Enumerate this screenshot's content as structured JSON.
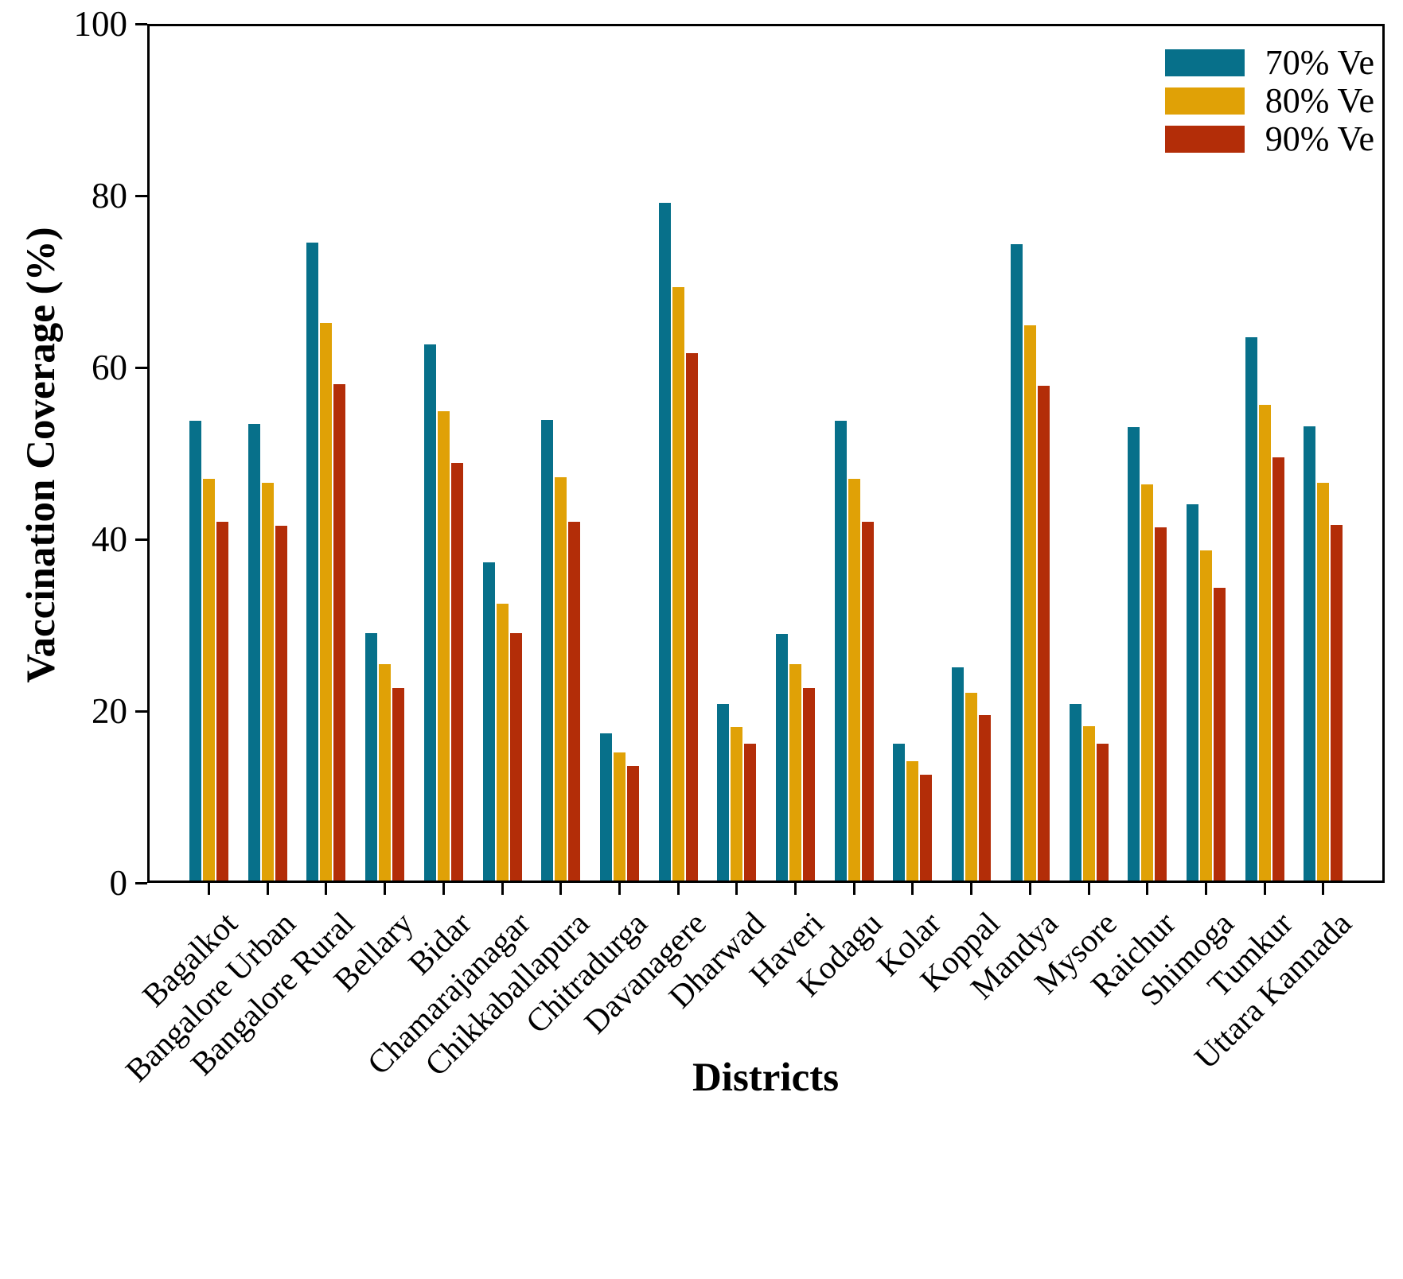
{
  "chart_data": {
    "type": "bar",
    "title": "",
    "xlabel": "Districts",
    "ylabel": "Vaccination Coverage (%)",
    "ylim": [
      0,
      100
    ],
    "yticks": [
      0,
      20,
      40,
      60,
      80,
      100
    ],
    "grid": false,
    "legend_position": "top-right-inside",
    "axis_color": "#000000",
    "background_color": "#ffffff",
    "categories": [
      "Bagalkot",
      "Bangalore Urban",
      "Bangalore Rural",
      "Bellary",
      "Bidar",
      "Chamarajanagar",
      "Chikkaballapura",
      "Chitradurga",
      "Davanagere",
      "Dharwad",
      "Haveri",
      "Kodagu",
      "Kolar",
      "Koppal",
      "Mandya",
      "Mysore",
      "Raichur",
      "Shimoga",
      "Tumkur",
      "Uttara Kannada"
    ],
    "series": [
      {
        "name": "70% Ve",
        "color": "#07708a",
        "values": [
          53.8,
          53.4,
          74.7,
          29.0,
          62.8,
          37.2,
          53.9,
          17.2,
          79.3,
          20.7,
          28.9,
          53.8,
          16.0,
          25.0,
          74.5,
          20.7,
          53.1,
          44.0,
          63.6,
          53.2
        ]
      },
      {
        "name": "80% Ve",
        "color": "#e0a106",
        "values": [
          47.0,
          46.6,
          65.3,
          25.3,
          54.9,
          32.4,
          47.2,
          15.0,
          69.5,
          18.0,
          25.3,
          47.0,
          14.0,
          22.0,
          65.0,
          18.1,
          46.4,
          38.6,
          55.7,
          46.6
        ]
      },
      {
        "name": "90% Ve",
        "color": "#b32d08",
        "values": [
          42.0,
          41.5,
          58.1,
          22.5,
          48.9,
          29.0,
          42.0,
          13.4,
          61.7,
          16.0,
          22.5,
          42.0,
          12.4,
          19.4,
          57.9,
          16.0,
          41.3,
          34.3,
          49.5,
          41.6
        ]
      }
    ]
  }
}
